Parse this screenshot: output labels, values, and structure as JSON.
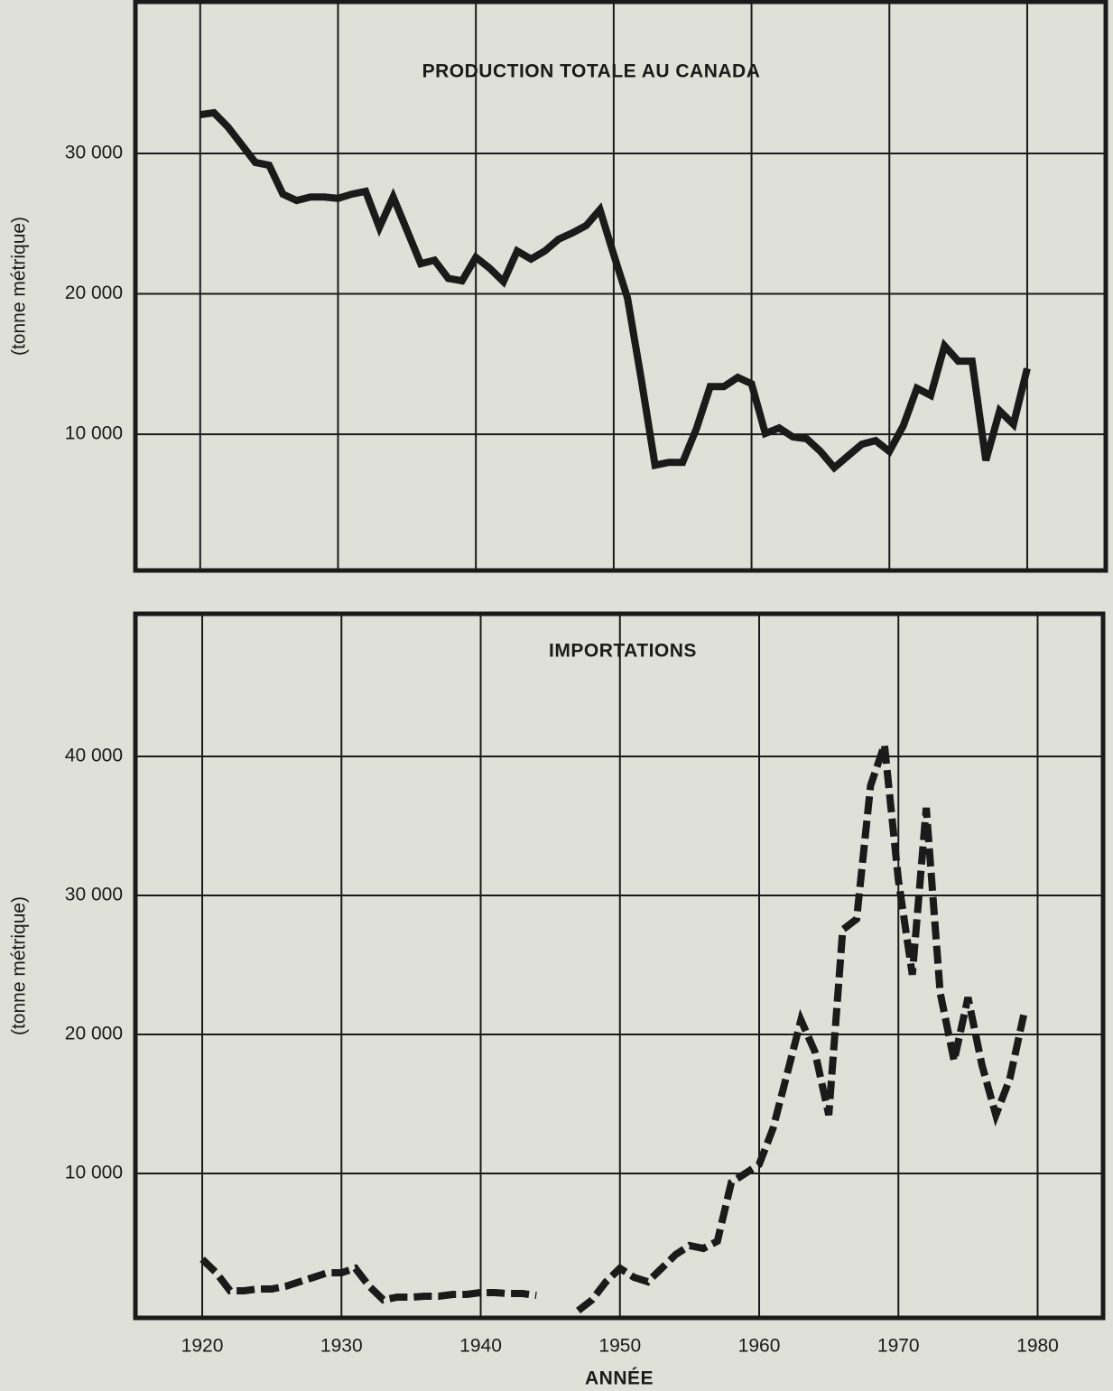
{
  "chart_data": [
    {
      "type": "line",
      "title": "PRODUCTION TOTALE AU CANADA",
      "y_label": "(tonne métrique)",
      "x": [
        1920,
        1921,
        1922,
        1923,
        1924,
        1925,
        1926,
        1927,
        1928,
        1929,
        1930,
        1931,
        1932,
        1933,
        1934,
        1935,
        1936,
        1937,
        1938,
        1939,
        1940,
        1941,
        1942,
        1943,
        1944,
        1945,
        1946,
        1947,
        1948,
        1949,
        1950,
        1951,
        1952,
        1953,
        1954,
        1955,
        1956,
        1957,
        1958,
        1959,
        1960,
        1961,
        1962,
        1963,
        1964,
        1965,
        1966,
        1967,
        1968,
        1969,
        1970,
        1971,
        1972,
        1973,
        1974,
        1975,
        1976,
        1977,
        1978,
        1979,
        1980
      ],
      "series": [
        {
          "color": "#1a1a1a",
          "line_style": "solid",
          "values": [
            32760,
            32900,
            31900,
            30640,
            29360,
            29160,
            27100,
            26650,
            26900,
            26900,
            26800,
            27100,
            27300,
            24730,
            26900,
            24530,
            22150,
            22400,
            21100,
            20930,
            22600,
            21830,
            20870,
            23050,
            22480,
            23050,
            23890,
            24340,
            24860,
            26000,
            22800,
            19710,
            13920,
            7800,
            8000,
            8000,
            10390,
            13400,
            13400,
            14050,
            13600,
            10060,
            10450,
            9810,
            9680,
            8780,
            7620,
            8460,
            9290,
            9550,
            8780,
            10580,
            13280,
            12770,
            16300,
            15210,
            15210,
            8140,
            11670,
            10710,
            14690
          ]
        }
      ],
      "xlim": [
        1915.3,
        1985.7
      ],
      "xticks": [
        1920,
        1930,
        1940,
        1950,
        1960,
        1970,
        1980
      ],
      "xtick_labels": false,
      "ylim": [
        300,
        40800
      ],
      "yticks": [
        {
          "value": 10000,
          "label": "10 000"
        },
        {
          "value": 20000,
          "label": "20 000"
        },
        {
          "value": 30000,
          "label": "30 000"
        }
      ],
      "grid": true
    },
    {
      "type": "line",
      "title": "IMPORTATIONS",
      "y_label": "(tonne métrique)",
      "x_label": "ANNÉE",
      "x": [
        1920,
        1921,
        1922,
        1923,
        1924,
        1925,
        1926,
        1927,
        1928,
        1929,
        1930,
        1931,
        1932,
        1933,
        1934,
        1935,
        1936,
        1937,
        1938,
        1939,
        1940,
        1941,
        1942,
        1943,
        1944,
        1945,
        1946,
        1947,
        1948,
        1949,
        1950,
        1951,
        1952,
        1953,
        1954,
        1955,
        1956,
        1957,
        1958,
        1959,
        1960,
        1961,
        1962,
        1963,
        1964,
        1965,
        1966,
        1967,
        1968,
        1969,
        1970,
        1971,
        1972,
        1973,
        1974,
        1975,
        1976,
        1977,
        1978,
        1979
      ],
      "series": [
        {
          "color": "#1a1a1a",
          "line_style": "dashed",
          "values": [
            3830,
            2860,
            1560,
            1560,
            1690,
            1690,
            1880,
            2210,
            2530,
            2860,
            2860,
            3180,
            1880,
            910,
            1100,
            1100,
            1170,
            1170,
            1300,
            1300,
            1430,
            1430,
            1360,
            1360,
            1230,
            null,
            null,
            130,
            910,
            2210,
            3180,
            2530,
            2210,
            3180,
            4160,
            4810,
            4610,
            5130,
            9350,
            10000,
            10650,
            13250,
            17140,
            21040,
            18770,
            14200,
            27530,
            28300,
            37900,
            40840,
            31100,
            24300,
            36300,
            23000,
            18100,
            22660,
            17800,
            14200,
            16800,
            21400
          ]
        }
      ],
      "xlim": [
        1915.2,
        1984.7
      ],
      "xticks": [
        1920,
        1930,
        1940,
        1950,
        1960,
        1970,
        1980
      ],
      "xtick_labels": true,
      "ylim": [
        -390,
        50260
      ],
      "yticks": [
        {
          "value": 10000,
          "label": "10 000"
        },
        {
          "value": 20000,
          "label": "20 000"
        },
        {
          "value": 30000,
          "label": "30 000"
        },
        {
          "value": 40000,
          "label": "40 000"
        }
      ],
      "grid": true
    }
  ]
}
